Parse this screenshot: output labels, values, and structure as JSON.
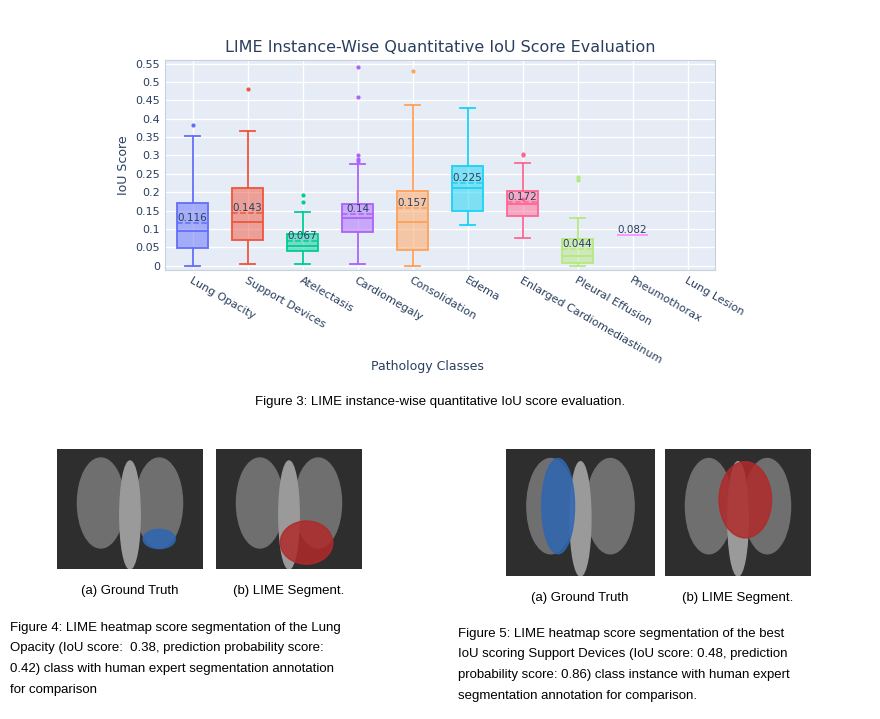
{
  "chart_data": {
    "type": "box",
    "title": "LIME Instance-Wise Quantitative IoU Score Evaluation",
    "x_label": "Pathology Classes",
    "y_label": "IoU Score",
    "categories": [
      "Lung Opacity",
      "Support Devices",
      "Atelectasis",
      "Cardiomegaly",
      "Consolidation",
      "Edema",
      "Enlarged Cardiomediastinum",
      "Pleural Effusion",
      "Pneumothorax",
      "Lung Lesion"
    ],
    "boxes": [
      {
        "color": "#636efa",
        "whisker_low": 0.0,
        "q1": 0.049,
        "median": 0.094,
        "q3": 0.17,
        "whisker_high": 0.353,
        "mean": 0.116,
        "outliers": [
          0.383
        ]
      },
      {
        "color": "#ef553b",
        "whisker_low": 0.003,
        "q1": 0.07,
        "median": 0.12,
        "q3": 0.21,
        "whisker_high": 0.367,
        "mean": 0.143,
        "outliers": [
          0.48
        ]
      },
      {
        "color": "#00cc96",
        "whisker_low": 0.005,
        "q1": 0.04,
        "median": 0.054,
        "q3": 0.086,
        "whisker_high": 0.145,
        "mean": 0.067,
        "outliers": [
          0.193,
          0.172
        ]
      },
      {
        "color": "#ab63fa",
        "whisker_low": 0.005,
        "q1": 0.092,
        "median": 0.13,
        "q3": 0.167,
        "whisker_high": 0.278,
        "mean": 0.14,
        "outliers": [
          0.54,
          0.46,
          0.3,
          0.29,
          0.285
        ]
      },
      {
        "color": "#ffa15a",
        "whisker_low": 0.0,
        "q1": 0.043,
        "median": 0.12,
        "q3": 0.202,
        "whisker_high": 0.437,
        "mean": 0.157,
        "outliers": [
          0.53
        ]
      },
      {
        "color": "#19d3f3",
        "whisker_low": 0.11,
        "q1": 0.149,
        "median": 0.21,
        "q3": 0.272,
        "whisker_high": 0.43,
        "mean": 0.225,
        "outliers": []
      },
      {
        "color": "#ff6692",
        "whisker_low": 0.075,
        "q1": 0.136,
        "median": 0.168,
        "q3": 0.203,
        "whisker_high": 0.28,
        "mean": 0.172,
        "outliers": [
          0.305,
          0.302,
          0.182
        ]
      },
      {
        "color": "#b6e880",
        "whisker_low": 0.0,
        "q1": 0.008,
        "median": 0.025,
        "q3": 0.072,
        "whisker_high": 0.13,
        "mean": 0.044,
        "outliers": [
          0.233,
          0.24
        ]
      },
      {
        "color": "#ff97ff",
        "whisker_low": 0.082,
        "q1": 0.082,
        "median": 0.082,
        "q3": 0.082,
        "whisker_high": 0.082,
        "mean": 0.082,
        "outliers": []
      },
      null
    ],
    "ylim": [
      -0.012,
      0.56
    ],
    "yticks": [
      0,
      0.05,
      0.1,
      0.15,
      0.2,
      0.25,
      0.3,
      0.35,
      0.4,
      0.45,
      0.5,
      0.55
    ],
    "grid": true,
    "data_labels": true
  },
  "figure_3_caption": "Figure 3: LIME instance-wise quantitative IoU score evaluation.",
  "figure_4": {
    "subcaptions": [
      "(a) Ground Truth",
      "(b) LIME Segment."
    ],
    "caption_lines": [
      "Figure 4: LIME heatmap score segmentation of the Lung",
      "Opacity (IoU score:  0.38, prediction probability score:",
      "0.42) class with human expert segmentation annotation",
      "for comparison"
    ]
  },
  "figure_5": {
    "subcaptions": [
      "(a) Ground Truth",
      "(b) LIME Segment."
    ],
    "caption_lines": [
      "Figure 5: LIME heatmap score segmentation of the best",
      "IoU scoring Support Devices (IoU score: 0.48, prediction",
      "probability score: 0.86) class instance with human expert",
      "segmentation annotation for comparison."
    ]
  }
}
